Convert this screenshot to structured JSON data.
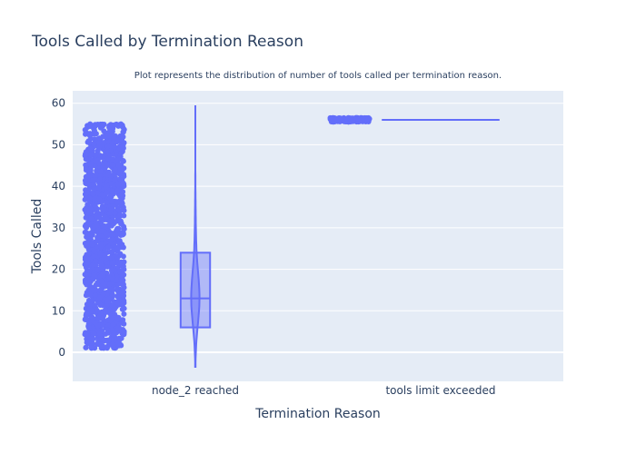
{
  "chart_data": {
    "type": "violin",
    "title": "Tools Called by Termination Reason",
    "subtitle": "Plot represents the distribution of number of tools called per termination reason.",
    "xlabel": "Termination Reason",
    "ylabel": "Tools Called",
    "categories": [
      "node_2 reached",
      "tools limit exceeded"
    ],
    "y_ticks": [
      0,
      10,
      20,
      30,
      40,
      50,
      60
    ],
    "ylim": [
      -7,
      63
    ],
    "grid": true,
    "color": "#636efa",
    "background": "#e5ecf6",
    "groups": [
      {
        "category": "node_2 reached",
        "points_range": [
          1,
          55
        ],
        "min": 1,
        "q1": 6,
        "median": 13,
        "q3": 24,
        "max": 55,
        "violin_extent": [
          -3.5,
          59.5
        ]
      },
      {
        "category": "tools limit exceeded",
        "points_range": [
          55.5,
          56.5
        ],
        "min": 56,
        "q1": 56,
        "median": 56,
        "q3": 56,
        "max": 56,
        "violin_extent": [
          56,
          56
        ]
      }
    ]
  }
}
